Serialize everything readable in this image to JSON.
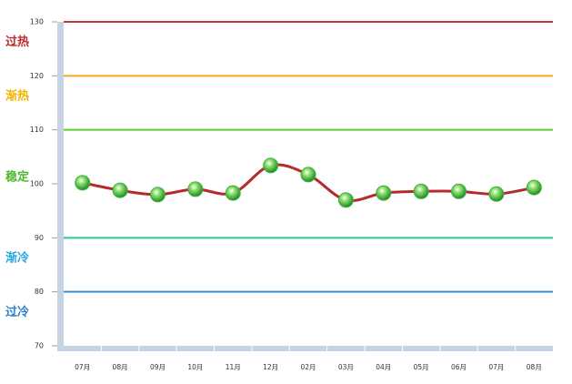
{
  "chart_data": {
    "type": "line",
    "categories": [
      "07月",
      "08月",
      "09月",
      "10月",
      "11月",
      "12月",
      "02月",
      "03月",
      "04月",
      "05月",
      "06月",
      "07月",
      "08月"
    ],
    "values": [
      100.2,
      98.8,
      98.0,
      99.0,
      98.3,
      103.4,
      101.7,
      97.0,
      98.3,
      98.6,
      98.6,
      98.1,
      99.3
    ],
    "color": "#b52a2a",
    "marker_color": "#3cb043",
    "ylim": [
      70,
      130
    ],
    "yticks": [
      70,
      80,
      90,
      100,
      110,
      120,
      130
    ],
    "reference_lines": [
      {
        "value": 130,
        "color": "#b83a3a"
      },
      {
        "value": 120,
        "color": "#f5a623"
      },
      {
        "value": 110,
        "color": "#5ccc2a"
      },
      {
        "value": 90,
        "color": "#2fc49a"
      },
      {
        "value": 80,
        "color": "#3a8fd8"
      }
    ],
    "zones": [
      {
        "label": "过热",
        "range": [
          120,
          130
        ],
        "color": "#c0282d"
      },
      {
        "label": "渐热",
        "range": [
          110,
          120
        ],
        "color": "#f5b400"
      },
      {
        "label": "稳定",
        "range": [
          90,
          110
        ],
        "color": "#4fb82a"
      },
      {
        "label": "渐冷",
        "range": [
          80,
          90
        ],
        "color": "#22a8e0"
      },
      {
        "label": "过冷",
        "range": [
          70,
          80
        ],
        "color": "#2a7fc8"
      }
    ]
  }
}
